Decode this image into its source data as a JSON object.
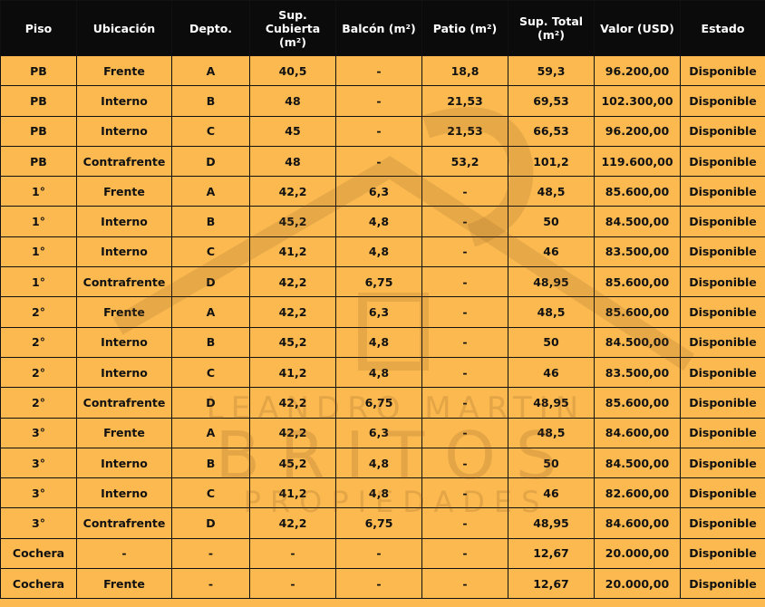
{
  "table": {
    "header": [
      "Piso",
      "Ubicación",
      "Depto.",
      "Sup. Cubierta (m²)",
      "Balcón (m²)",
      "Patio (m²)",
      "Sup. Total (m²)",
      "Valor (USD)",
      "Estado"
    ],
    "rows": [
      [
        "PB",
        "Frente",
        "A",
        "40,5",
        "-",
        "18,8",
        "59,3",
        "96.200,00",
        "Disponible"
      ],
      [
        "PB",
        "Interno",
        "B",
        "48",
        "-",
        "21,53",
        "69,53",
        "102.300,00",
        "Disponible"
      ],
      [
        "PB",
        "Interno",
        "C",
        "45",
        "-",
        "21,53",
        "66,53",
        "96.200,00",
        "Disponible"
      ],
      [
        "PB",
        "Contrafrente",
        "D",
        "48",
        "-",
        "53,2",
        "101,2",
        "119.600,00",
        "Disponible"
      ],
      [
        "1°",
        "Frente",
        "A",
        "42,2",
        "6,3",
        "-",
        "48,5",
        "85.600,00",
        "Disponible"
      ],
      [
        "1°",
        "Interno",
        "B",
        "45,2",
        "4,8",
        "-",
        "50",
        "84.500,00",
        "Disponible"
      ],
      [
        "1°",
        "Interno",
        "C",
        "41,2",
        "4,8",
        "-",
        "46",
        "83.500,00",
        "Disponible"
      ],
      [
        "1°",
        "Contrafrente",
        "D",
        "42,2",
        "6,75",
        "-",
        "48,95",
        "85.600,00",
        "Disponible"
      ],
      [
        "2°",
        "Frente",
        "A",
        "42,2",
        "6,3",
        "-",
        "48,5",
        "85.600,00",
        "Disponible"
      ],
      [
        "2°",
        "Interno",
        "B",
        "45,2",
        "4,8",
        "-",
        "50",
        "84.500,00",
        "Disponible"
      ],
      [
        "2°",
        "Interno",
        "C",
        "41,2",
        "4,8",
        "-",
        "46",
        "83.500,00",
        "Disponible"
      ],
      [
        "2°",
        "Contrafrente",
        "D",
        "42,2",
        "6,75",
        "-",
        "48,95",
        "85.600,00",
        "Disponible"
      ],
      [
        "3°",
        "Frente",
        "A",
        "42,2",
        "6,3",
        "-",
        "48,5",
        "84.600,00",
        "Disponible"
      ],
      [
        "3°",
        "Interno",
        "B",
        "45,2",
        "4,8",
        "-",
        "50",
        "84.500,00",
        "Disponible"
      ],
      [
        "3°",
        "Interno",
        "C",
        "41,2",
        "4,8",
        "-",
        "46",
        "82.600,00",
        "Disponible"
      ],
      [
        "3°",
        "Contrafrente",
        "D",
        "42,2",
        "6,75",
        "-",
        "48,95",
        "84.600,00",
        "Disponible"
      ],
      [
        "Cochera",
        "-",
        "-",
        "-",
        "-",
        "-",
        "12,67",
        "20.000,00",
        "Disponible"
      ],
      [
        "Cochera",
        "Frente",
        "-",
        "-",
        "-",
        "-",
        "12,67",
        "20.000,00",
        "Disponible"
      ]
    ]
  },
  "watermark": {
    "line1": "LEANDRO MARTIN",
    "line2": "BRITOS",
    "line3": "PROPIEDADES"
  }
}
